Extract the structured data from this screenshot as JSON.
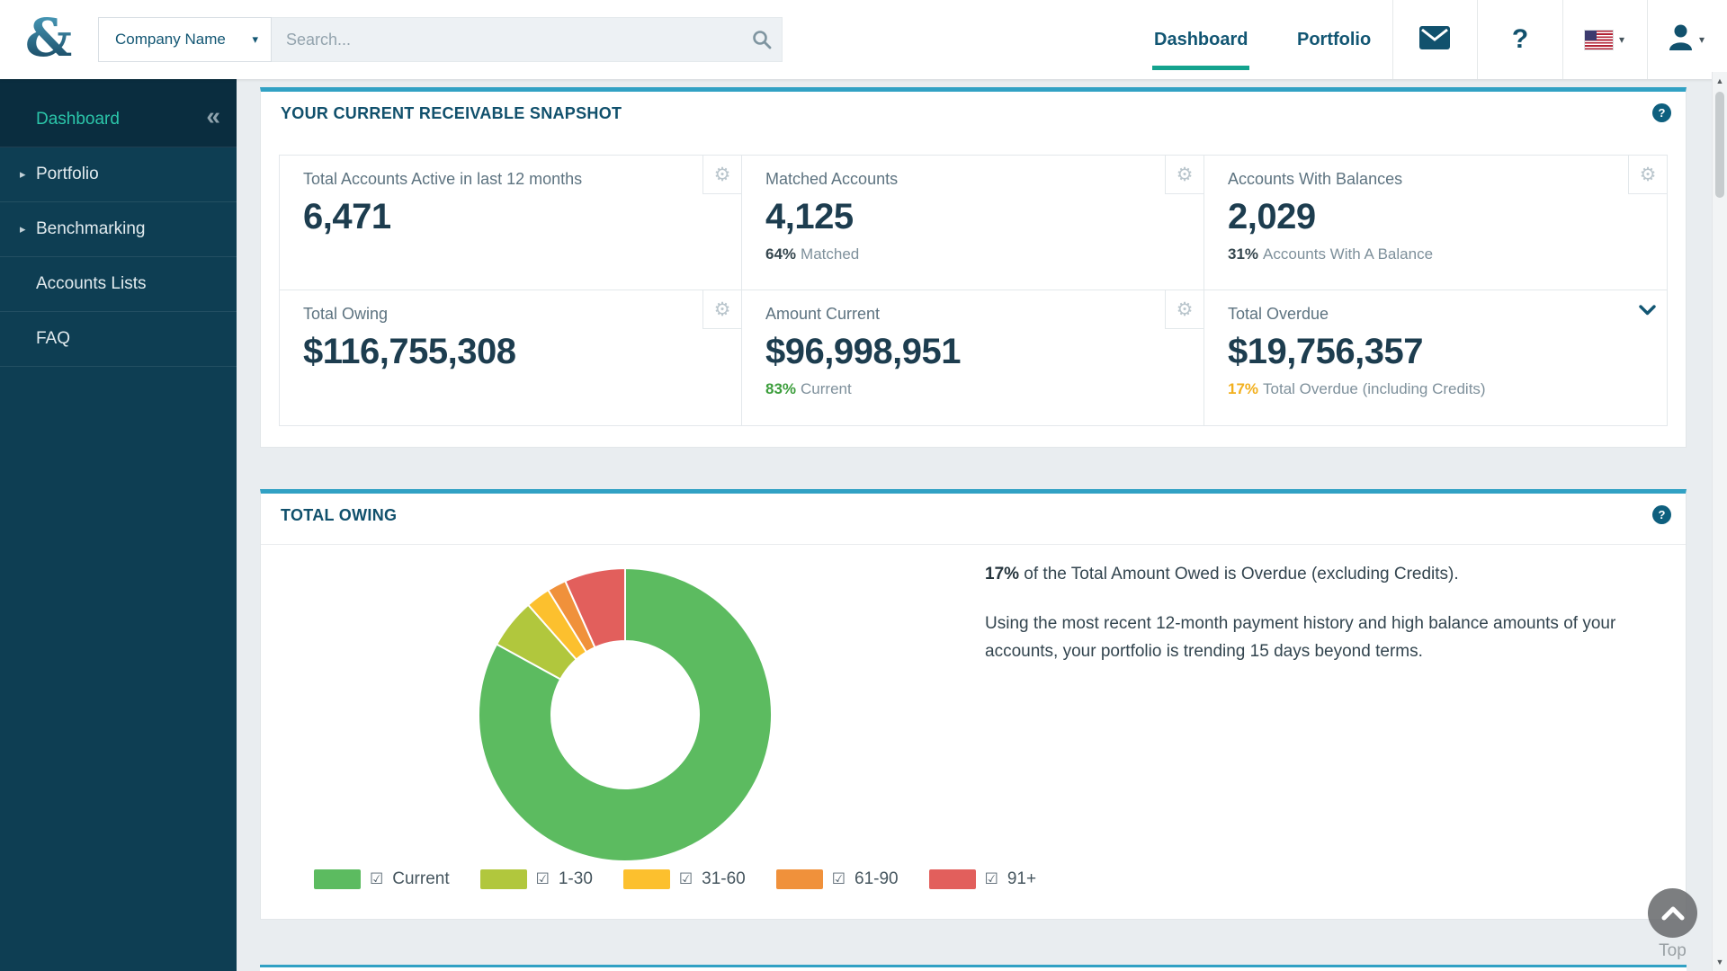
{
  "topbar": {
    "company_selector": "Company Name",
    "search_placeholder": "Search...",
    "nav": [
      {
        "label": "Dashboard",
        "active": true
      },
      {
        "label": "Portfolio",
        "active": false
      }
    ]
  },
  "sidebar": {
    "items": [
      {
        "label": "Dashboard",
        "active": true
      },
      {
        "label": "Portfolio",
        "expandable": true
      },
      {
        "label": "Benchmarking",
        "expandable": true
      },
      {
        "label": "Accounts Lists",
        "expandable": false
      },
      {
        "label": "FAQ",
        "expandable": false
      }
    ]
  },
  "snapshot": {
    "title": "YOUR CURRENT RECEIVABLE SNAPSHOT",
    "cards": [
      {
        "label": "Total Accounts Active in last 12 months",
        "value": "6,471"
      },
      {
        "label": "Matched Accounts",
        "value": "4,125",
        "sub_strong": "64%",
        "sub_text": "Matched",
        "sub_color": "#36474f"
      },
      {
        "label": "Accounts With Balances",
        "value": "2,029",
        "sub_strong": "31%",
        "sub_text": "Accounts With A Balance",
        "sub_color": "#36474f"
      },
      {
        "label": "Total Owing",
        "value": "$116,755,308"
      },
      {
        "label": "Amount Current",
        "value": "$96,998,951",
        "sub_strong": "83%",
        "sub_text": "Current",
        "sub_color": "#3c9e3c"
      },
      {
        "label": "Total Overdue",
        "value": "$19,756,357",
        "sub_strong": "17%",
        "sub_text": "Total Overdue (including Credits)",
        "sub_color": "#f2b01e"
      }
    ]
  },
  "total_owing": {
    "title": "TOTAL OWING",
    "summary_strong": "17%",
    "summary_rest": " of the Total Amount Owed is Overdue (excluding Credits).",
    "detail": "Using the most recent 12-month payment history and high balance amounts of your accounts, your portfolio is trending 15 days beyond terms."
  },
  "chart_data": {
    "type": "pie",
    "subtype": "donut",
    "title": "TOTAL OWING",
    "labels": [
      "Current",
      "1-30",
      "31-60",
      "61-90",
      "91+"
    ],
    "values": [
      83,
      5.5,
      2.7,
      2.1,
      6.7
    ],
    "unit": "%",
    "colors": [
      "#5cbb60",
      "#b1c73d",
      "#fcc02e",
      "#f0913b",
      "#e25f5c"
    ],
    "legend_position": "bottom",
    "start_angle_deg": 0,
    "direction": "clockwise",
    "legend_checkboxes_checked": true
  },
  "back_to_top": {
    "label": "Top"
  },
  "icons": {
    "gear": "⚙",
    "collapse": "«",
    "caret_right": "▸",
    "caret_down": "▾",
    "checkbox_checked": "☑",
    "help": "?",
    "scroll_up": "▲",
    "scroll_down": "▼"
  },
  "theme": {
    "accent_teal": "#14a38e",
    "sidebar_bg": "#0e3e53",
    "sidebar_active_bg": "#0a2d3f",
    "sidebar_active_text": "#2bc5a9",
    "panel_accent_border": "#31a1c4",
    "primary_text": "#125673",
    "value_text": "#1d3d4f",
    "positive_green": "#3c9e3c",
    "warning_amber": "#f2b01e"
  }
}
